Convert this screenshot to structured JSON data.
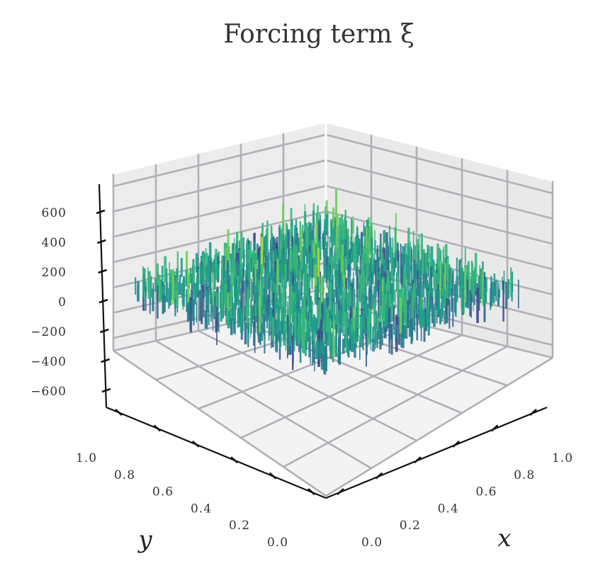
{
  "chart_data": {
    "type": "surface3d",
    "title": "Forcing term ξ",
    "xlabel": "x",
    "ylabel": "y",
    "zlabel": "",
    "xlim": [
      0.0,
      1.0
    ],
    "ylim": [
      0.0,
      1.0
    ],
    "zlim": [
      -700,
      700
    ],
    "xticks": [
      "0.0",
      "0.2",
      "0.4",
      "0.6",
      "0.8",
      "1.0"
    ],
    "yticks": [
      "0.0",
      "0.2",
      "0.4",
      "0.6",
      "0.8",
      "1.0"
    ],
    "zticks": [
      "−600",
      "−400",
      "−200",
      "0",
      "200",
      "400",
      "600"
    ],
    "colormap": "viridis",
    "surface": "random noise field over the unit square, values roughly between -600 and 600, centered at 0",
    "grid": true
  }
}
